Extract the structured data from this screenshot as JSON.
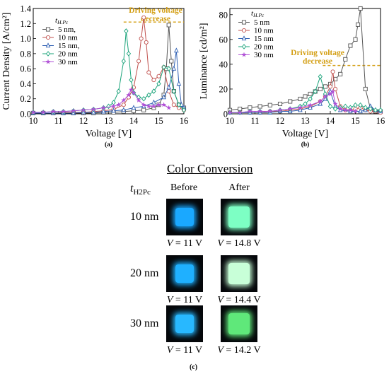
{
  "chart_data": [
    {
      "type": "line",
      "panel_label": "(a)",
      "xlabel": "Voltage [V]",
      "ylabel": "Current Density [A/cm²]",
      "xlim": [
        10,
        16
      ],
      "ylim": [
        0,
        1.4
      ],
      "x_ticks": [
        10,
        11,
        12,
        13,
        14,
        15,
        16
      ],
      "y_ticks": [
        0.0,
        0.2,
        0.4,
        0.6,
        0.8,
        1.0,
        1.2,
        1.4
      ],
      "legend_title": "tH.Pc",
      "legend_placement": "top-left",
      "annotation": {
        "line1": "Driving voltage",
        "line2": "decrease",
        "color": "#d4a017",
        "y": 1.22,
        "x_from": 13.6,
        "x_to": 16
      },
      "series": [
        {
          "name": "5 nm,",
          "color": "#555555",
          "marker": "square",
          "x": [
            10.0,
            10.4,
            10.8,
            11.2,
            11.6,
            12.0,
            12.4,
            12.8,
            13.2,
            13.6,
            14.0,
            14.4,
            14.8,
            15.0,
            15.2,
            15.3,
            15.4,
            15.5,
            15.6,
            15.8,
            16.0
          ],
          "y": [
            0.01,
            0.01,
            0.01,
            0.01,
            0.01,
            0.01,
            0.01,
            0.02,
            0.02,
            0.03,
            0.04,
            0.05,
            0.08,
            0.12,
            0.25,
            0.6,
            1.18,
            0.7,
            0.3,
            0.12,
            0.08
          ]
        },
        {
          "name": "10 nm",
          "color": "#c0504d",
          "marker": "circle",
          "x": [
            10.0,
            10.4,
            10.8,
            11.2,
            11.6,
            12.0,
            12.4,
            12.8,
            13.2,
            13.6,
            13.8,
            14.0,
            14.2,
            14.3,
            14.4,
            14.5,
            14.6,
            14.8,
            15.0,
            15.2,
            15.4,
            15.6,
            15.8,
            16.0
          ],
          "y": [
            0.01,
            0.01,
            0.01,
            0.02,
            0.02,
            0.02,
            0.03,
            0.04,
            0.06,
            0.12,
            0.22,
            0.35,
            0.7,
            1.0,
            1.28,
            0.95,
            0.55,
            0.45,
            0.5,
            0.62,
            0.3,
            0.12,
            0.08,
            0.05
          ]
        },
        {
          "name": "15 nm,",
          "color": "#2e5fb3",
          "marker": "triangle",
          "x": [
            10.0,
            10.4,
            10.8,
            11.2,
            11.6,
            12.0,
            12.4,
            12.8,
            13.2,
            13.6,
            14.0,
            14.4,
            14.8,
            15.2,
            15.4,
            15.6,
            15.7,
            15.8,
            15.9,
            16.0
          ],
          "y": [
            0.01,
            0.01,
            0.01,
            0.01,
            0.01,
            0.02,
            0.02,
            0.03,
            0.04,
            0.05,
            0.08,
            0.1,
            0.15,
            0.22,
            0.35,
            0.6,
            0.84,
            0.4,
            0.12,
            0.08
          ]
        },
        {
          "name": "20 nm",
          "color": "#1aa37a",
          "marker": "diamond",
          "x": [
            10.0,
            10.4,
            10.8,
            11.2,
            11.6,
            12.0,
            12.4,
            12.8,
            13.0,
            13.2,
            13.4,
            13.6,
            13.7,
            13.8,
            13.9,
            14.0,
            14.2,
            14.4,
            14.6,
            14.8,
            15.0,
            15.2,
            15.4,
            15.6,
            15.8,
            16.0
          ],
          "y": [
            0.02,
            0.02,
            0.03,
            0.03,
            0.04,
            0.05,
            0.06,
            0.08,
            0.1,
            0.15,
            0.3,
            0.7,
            1.1,
            0.8,
            0.45,
            0.28,
            0.22,
            0.2,
            0.25,
            0.3,
            0.4,
            0.62,
            0.6,
            0.3,
            0.12,
            0.05
          ]
        },
        {
          "name": "30 nm",
          "color": "#b04fd6",
          "marker": "star",
          "x": [
            10.0,
            10.4,
            10.8,
            11.2,
            11.6,
            12.0,
            12.4,
            12.8,
            13.2,
            13.4,
            13.6,
            13.8,
            13.9,
            14.0,
            14.2,
            14.4,
            14.6,
            14.8,
            15.0,
            15.2,
            15.4
          ],
          "y": [
            0.02,
            0.02,
            0.03,
            0.03,
            0.04,
            0.05,
            0.06,
            0.08,
            0.1,
            0.12,
            0.18,
            0.25,
            0.32,
            0.28,
            0.18,
            0.12,
            0.1,
            0.1,
            0.12,
            0.12,
            0.08
          ]
        }
      ]
    },
    {
      "type": "line",
      "panel_label": "(b)",
      "xlabel": "Voltage [V]",
      "ylabel": "Luminance [cd/m²]",
      "xlim": [
        10,
        16
      ],
      "ylim": [
        0,
        85
      ],
      "x_ticks": [
        10,
        11,
        12,
        13,
        14,
        15,
        16
      ],
      "y_ticks": [
        0,
        20,
        40,
        60,
        80
      ],
      "legend_title": "tH.Pc",
      "legend_placement": "top-left",
      "annotation": {
        "line1": "Driving voltage",
        "line2": "decrease",
        "color": "#d4a017",
        "y": 39,
        "x_from": 13.7,
        "x_to": 16
      },
      "series": [
        {
          "name": "5 nm",
          "color": "#555555",
          "marker": "square",
          "x": [
            10.0,
            10.4,
            10.8,
            11.2,
            11.6,
            12.0,
            12.4,
            12.8,
            13.0,
            13.2,
            13.4,
            13.6,
            13.8,
            14.0,
            14.2,
            14.4,
            14.6,
            14.8,
            15.0,
            15.1,
            15.2,
            15.4,
            15.6,
            15.8,
            16.0
          ],
          "y": [
            3,
            4,
            5,
            6,
            7,
            8,
            10,
            12,
            14,
            16,
            18,
            20,
            22,
            24,
            28,
            32,
            44,
            55,
            60,
            72,
            85,
            20,
            4,
            2,
            2
          ]
        },
        {
          "name": "10 nm",
          "color": "#c0504d",
          "marker": "circle",
          "x": [
            10.0,
            10.4,
            10.8,
            11.2,
            11.6,
            12.0,
            12.4,
            12.8,
            13.2,
            13.6,
            13.8,
            14.0,
            14.1,
            14.2,
            14.4,
            14.6,
            14.8,
            15.0,
            15.2,
            15.4,
            15.6,
            15.8,
            16.0
          ],
          "y": [
            1,
            1,
            1,
            1,
            2,
            2,
            3,
            4,
            6,
            10,
            14,
            22,
            34,
            20,
            6,
            3,
            3,
            4,
            5,
            3,
            2,
            2,
            1
          ]
        },
        {
          "name": "15 nm",
          "color": "#2e5fb3",
          "marker": "triangle",
          "x": [
            10.0,
            10.4,
            10.8,
            11.2,
            11.6,
            12.0,
            12.4,
            12.8,
            13.2,
            13.6,
            13.8,
            14.0,
            14.2,
            14.4,
            14.8,
            15.2,
            15.4,
            15.6,
            15.8,
            16.0
          ],
          "y": [
            1,
            1,
            1,
            1,
            1,
            2,
            2,
            3,
            5,
            8,
            12,
            18,
            6,
            3,
            2,
            2,
            3,
            6,
            3,
            2
          ]
        },
        {
          "name": "20 nm",
          "color": "#1aa37a",
          "marker": "diamond",
          "x": [
            10.0,
            10.4,
            10.8,
            11.2,
            11.6,
            12.0,
            12.4,
            12.8,
            13.0,
            13.2,
            13.4,
            13.6,
            13.8,
            14.0,
            14.2,
            14.4,
            14.6,
            14.8,
            15.0,
            15.2,
            15.4,
            15.6,
            15.8,
            16.0
          ],
          "y": [
            1,
            1,
            2,
            2,
            2,
            3,
            4,
            6,
            8,
            12,
            18,
            30,
            16,
            6,
            4,
            5,
            6,
            5,
            7,
            7,
            5,
            4,
            3,
            3
          ]
        },
        {
          "name": "30 nm",
          "color": "#b04fd6",
          "marker": "star",
          "x": [
            10.0,
            10.4,
            10.8,
            11.2,
            11.6,
            12.0,
            12.4,
            12.8,
            13.2,
            13.6,
            13.8,
            14.0,
            14.1,
            14.2,
            14.4,
            14.6,
            14.8,
            15.0
          ],
          "y": [
            1,
            1,
            2,
            2,
            2,
            3,
            4,
            5,
            7,
            10,
            14,
            16,
            18,
            8,
            4,
            3,
            3,
            2
          ]
        }
      ]
    }
  ],
  "color_conversion": {
    "title": "Color Conversion",
    "row_header": "tH2Pc",
    "col_before": "Before",
    "col_after": "After",
    "panel_label": "(c)",
    "rows": [
      {
        "label": "10 nm",
        "before_v": "V = 11 V",
        "after_v": "V = 14.8 V",
        "before_color": "#1aa8ff",
        "after_color": "#7dffc4"
      },
      {
        "label": "20 nm",
        "before_v": "V = 11 V",
        "after_v": "V = 14.4 V",
        "before_color": "#1fb0ff",
        "after_color": "#c8ffd8"
      },
      {
        "label": "30 nm",
        "before_v": "V = 11 V",
        "after_v": "V = 14.2 V",
        "before_color": "#28b8ff",
        "after_color": "#5fe87a"
      }
    ]
  }
}
